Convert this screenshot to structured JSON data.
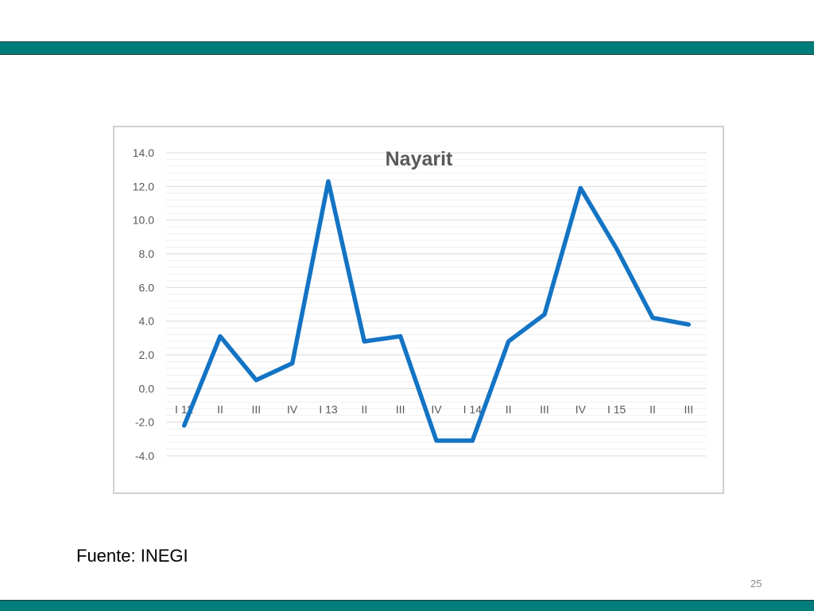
{
  "slide": {
    "source": "Fuente: INEGI",
    "page_number": "25",
    "band_color": "#007d7a"
  },
  "chart_data": {
    "type": "line",
    "title": "Nayarit",
    "categories": [
      "I 12",
      "II",
      "III",
      "IV",
      "I 13",
      "II",
      "III",
      "IV",
      "I 14",
      "II",
      "III",
      "IV",
      "I 15",
      "II",
      "III"
    ],
    "series": [
      {
        "values": [
          -2.2,
          3.1,
          0.5,
          1.5,
          12.3,
          2.8,
          3.1,
          -3.1,
          -3.1,
          2.8,
          4.4,
          11.9,
          8.3,
          4.2,
          3.8
        ],
        "color": "#1474c4"
      }
    ],
    "ylim": [
      -4.0,
      14.0
    ],
    "yticks": [
      "14.0",
      "12.0",
      "10.0",
      "8.0",
      "6.0",
      "4.0",
      "2.0",
      "0.0",
      "-2.0",
      "-4.0"
    ],
    "xlabel": "",
    "ylabel": "",
    "grid": true
  }
}
